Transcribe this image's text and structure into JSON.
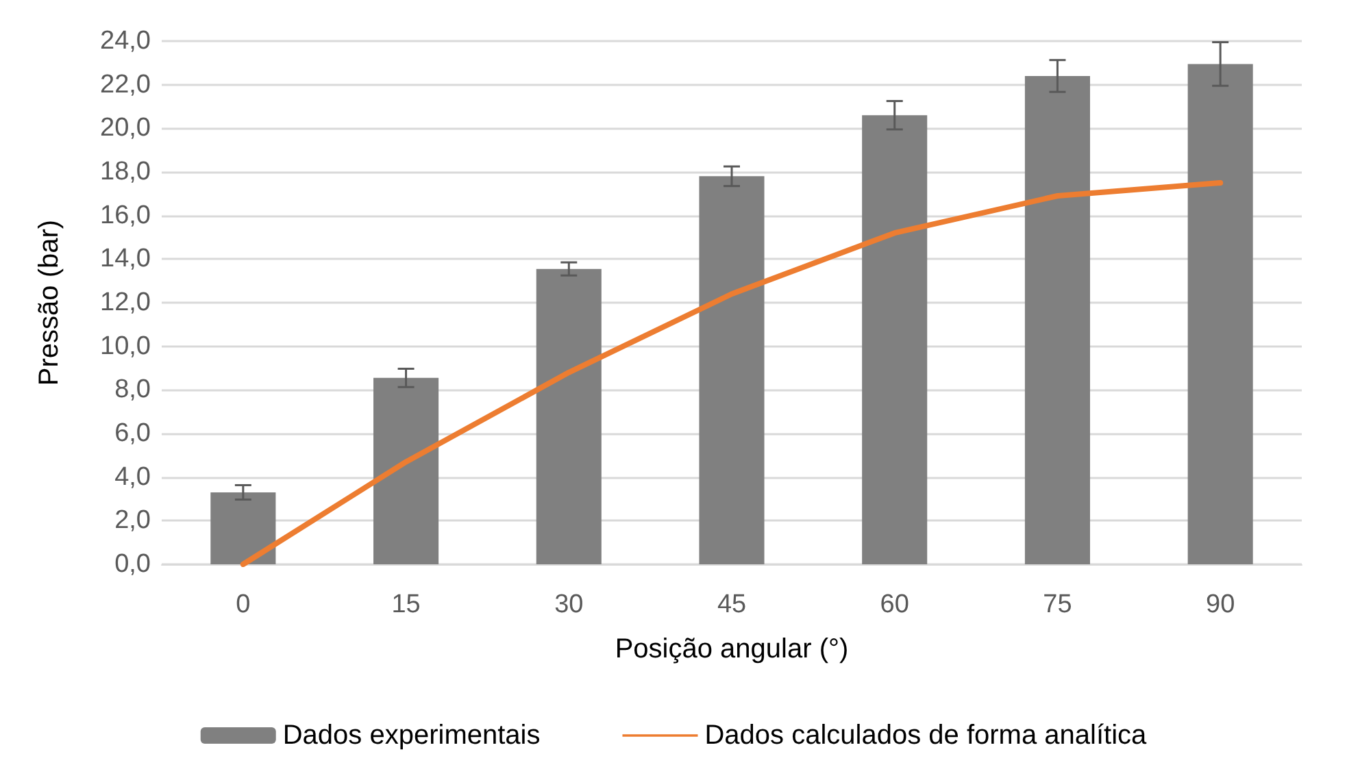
{
  "chart_data": {
    "type": "bar",
    "xlabel": "Posição angular (°)",
    "ylabel": "Pressão (bar)",
    "categories": [
      "0",
      "15",
      "30",
      "45",
      "60",
      "75",
      "90"
    ],
    "series": [
      {
        "name": "Dados experimentais",
        "color": "#808080",
        "values": [
          3.3,
          8.55,
          13.55,
          17.8,
          20.6,
          22.4,
          22.95
        ],
        "errors": [
          0.33,
          0.42,
          0.3,
          0.45,
          0.65,
          0.73,
          1.0
        ]
      },
      {
        "name": "Dados calculados de forma analítica",
        "type": "line",
        "color": "#ed7d31",
        "values": [
          0,
          4.7,
          8.8,
          12.4,
          15.2,
          16.9,
          17.5
        ]
      }
    ],
    "ylim": [
      0,
      24
    ],
    "yticks": [
      {
        "value": 0,
        "label": "0,0"
      },
      {
        "value": 2,
        "label": "2,0"
      },
      {
        "value": 4,
        "label": "4,0"
      },
      {
        "value": 6,
        "label": "6,0"
      },
      {
        "value": 8,
        "label": "8,0"
      },
      {
        "value": 10,
        "label": "10,0"
      },
      {
        "value": 12,
        "label": "12,0"
      },
      {
        "value": 14,
        "label": "14,0"
      },
      {
        "value": 16,
        "label": "16,0"
      },
      {
        "value": 18,
        "label": "18,0"
      },
      {
        "value": 20,
        "label": "20,0"
      },
      {
        "value": 22,
        "label": "22,0"
      },
      {
        "value": 24,
        "label": "24,0"
      }
    ],
    "grid": "y",
    "legend": "bottom",
    "marker": "none",
    "line_style": "solid"
  }
}
